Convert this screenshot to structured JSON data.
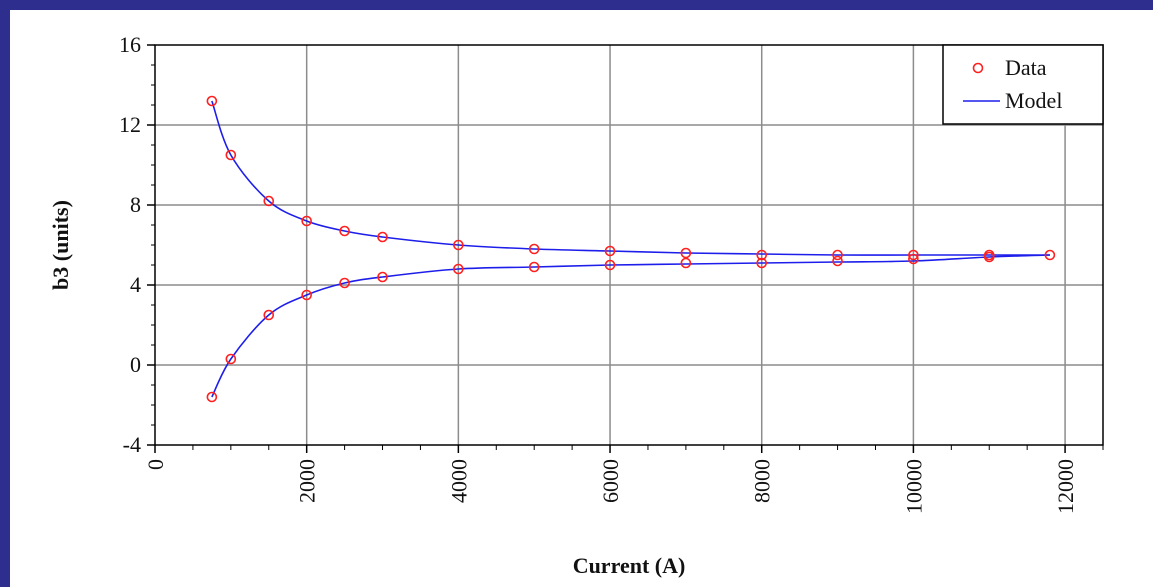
{
  "chart_data": {
    "type": "scatter",
    "title": "",
    "xlabel": "Current (A)",
    "ylabel": "b3 (units)",
    "xlim": [
      0,
      12500
    ],
    "ylim": [
      -4,
      16
    ],
    "x_ticks": [
      0,
      2000,
      4000,
      6000,
      8000,
      10000,
      12000
    ],
    "y_ticks": [
      -4,
      0,
      4,
      8,
      12,
      16
    ],
    "grid": true,
    "legend_position": "top-right",
    "colors": {
      "data": "#FF2020",
      "model": "#1E1EEB",
      "background": "#2E2E8F"
    },
    "series": [
      {
        "name": "Data",
        "style": "markers",
        "points": [
          [
            750,
            13.2
          ],
          [
            1000,
            10.5
          ],
          [
            1500,
            8.2
          ],
          [
            2000,
            7.2
          ],
          [
            2500,
            6.7
          ],
          [
            3000,
            6.4
          ],
          [
            4000,
            6.0
          ],
          [
            5000,
            5.8
          ],
          [
            6000,
            5.7
          ],
          [
            7000,
            5.6
          ],
          [
            8000,
            5.5
          ],
          [
            9000,
            5.5
          ],
          [
            10000,
            5.5
          ],
          [
            11000,
            5.5
          ],
          [
            11800,
            5.5
          ],
          [
            750,
            -1.6
          ],
          [
            1000,
            0.3
          ],
          [
            1500,
            2.5
          ],
          [
            2000,
            3.5
          ],
          [
            2500,
            4.1
          ],
          [
            3000,
            4.4
          ],
          [
            4000,
            4.8
          ],
          [
            5000,
            4.9
          ],
          [
            6000,
            5.0
          ],
          [
            7000,
            5.1
          ],
          [
            8000,
            5.1
          ],
          [
            9000,
            5.2
          ],
          [
            10000,
            5.3
          ],
          [
            11000,
            5.4
          ]
        ]
      },
      {
        "name": "Model",
        "style": "line",
        "branches": [
          [
            [
              750,
              13.2
            ],
            [
              1000,
              10.5
            ],
            [
              1500,
              8.2
            ],
            [
              2000,
              7.2
            ],
            [
              2500,
              6.7
            ],
            [
              3000,
              6.4
            ],
            [
              4000,
              6.0
            ],
            [
              5000,
              5.8
            ],
            [
              6000,
              5.7
            ],
            [
              7000,
              5.6
            ],
            [
              8000,
              5.55
            ],
            [
              9000,
              5.5
            ],
            [
              10000,
              5.5
            ],
            [
              11000,
              5.5
            ],
            [
              11800,
              5.5
            ]
          ],
          [
            [
              750,
              -1.6
            ],
            [
              1000,
              0.3
            ],
            [
              1500,
              2.5
            ],
            [
              2000,
              3.5
            ],
            [
              2500,
              4.1
            ],
            [
              3000,
              4.4
            ],
            [
              4000,
              4.8
            ],
            [
              5000,
              4.9
            ],
            [
              6000,
              5.0
            ],
            [
              7000,
              5.05
            ],
            [
              8000,
              5.1
            ],
            [
              9000,
              5.15
            ],
            [
              10000,
              5.2
            ],
            [
              11000,
              5.4
            ],
            [
              11800,
              5.5
            ]
          ]
        ]
      }
    ]
  }
}
